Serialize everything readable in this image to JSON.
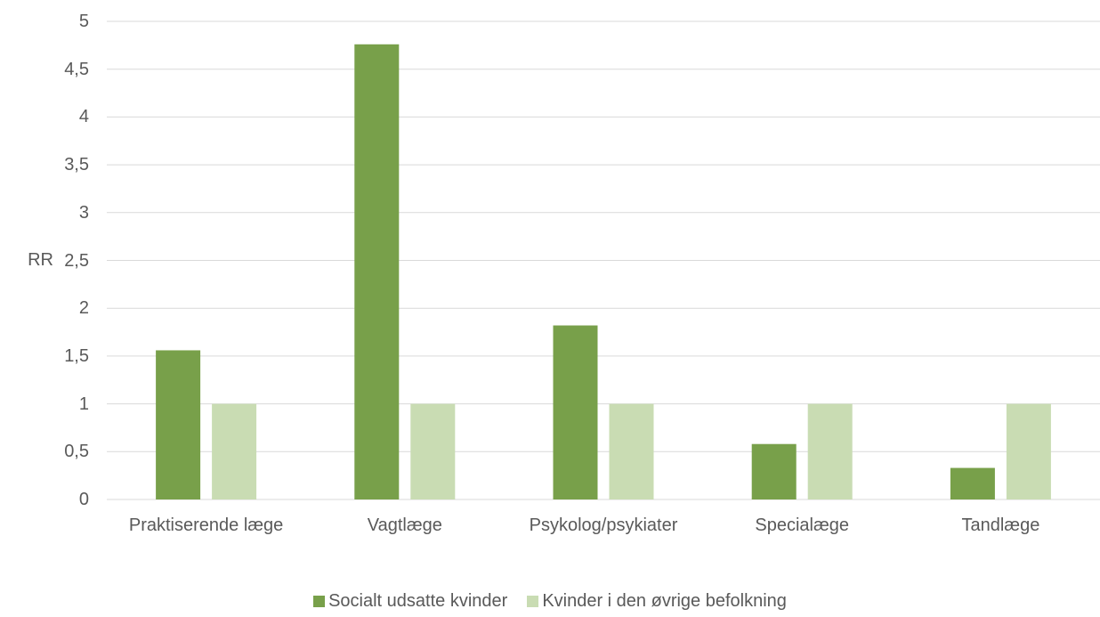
{
  "chart_data": {
    "type": "bar",
    "y_label": "RR",
    "categories": [
      "Praktiserende læge",
      "Vagtlæge",
      "Psykolog/psykiater",
      "Specialæge",
      "Tandlæge"
    ],
    "series": [
      {
        "name": "Socialt udsatte kvinder",
        "color": "#78a04a",
        "values": [
          1.56,
          4.76,
          1.82,
          0.58,
          0.33
        ]
      },
      {
        "name": "Kvinder i den øvrige befolkning",
        "color": "#c9dcb3",
        "values": [
          1,
          1,
          1,
          1,
          1
        ]
      }
    ],
    "ylim": [
      0,
      5
    ],
    "yticks": [
      0,
      {
        "value": 0.5,
        "label": "0,5"
      },
      1,
      {
        "value": 1.5,
        "label": "1,5"
      },
      2,
      {
        "value": 2.5,
        "label": "2,5"
      },
      3,
      {
        "value": 3.5,
        "label": "3,5"
      },
      4,
      {
        "value": 4.5,
        "label": "4,5"
      },
      5
    ],
    "grid": true,
    "legend": "bottom"
  }
}
